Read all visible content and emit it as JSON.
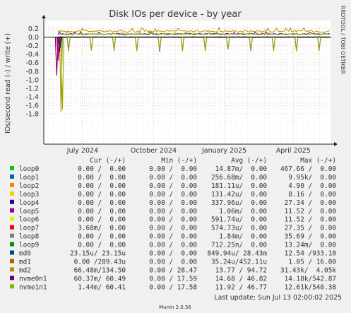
{
  "title": "Disk IOs per device - by year",
  "side_label": "RRDTOOL / TOBI OETIKER",
  "footer": "Munin 2.0.56",
  "last_update": "Last update: Sun Jul 13 02:00:02 2025",
  "colors": {
    "background": "#f0f0f0",
    "plot_bg": "#ffffff",
    "grid_major": "#e8a6a6",
    "grid_minor": "#d8d8d8",
    "axis": "#222222"
  },
  "chart_data": {
    "type": "line",
    "ylabel": "IOs/second read (-) / write (+)",
    "xlabel": "",
    "ylim": [
      -1.8,
      0.27
    ],
    "y_ticks": [
      0.2,
      0.0,
      -0.2,
      -0.4,
      -0.6,
      -0.8,
      -1.0,
      -1.2,
      -1.4,
      -1.6,
      -1.8
    ],
    "y_tick_labels": [
      "0.2",
      "0.0",
      "-0.2",
      "-0.4",
      "-0.6",
      "-0.8",
      "-1.0",
      "-1.2",
      "-1.4",
      "-1.6",
      "-1.8"
    ],
    "x_tick_labels": [
      "July 2024",
      "October 2024",
      "January 2025",
      "April 2025"
    ],
    "x_tick_positions": [
      0.135,
      0.382,
      0.628,
      0.868
    ],
    "grid": true,
    "legend_headers": [
      "Cur (-/+)",
      "Min (-/+)",
      "Avg (-/+)",
      "Max (-/+)"
    ],
    "series": [
      {
        "name": "loop0",
        "color": "#00cc00",
        "cur": "0.00 /  0.00",
        "min": "0.00 /  0.00",
        "avg": "14.87m/  0.00",
        "max": "467.66 /  0.00"
      },
      {
        "name": "loop1",
        "color": "#0066b3",
        "cur": "0.00 /  0.00",
        "min": "0.00 /  0.00",
        "avg": "256.68m/  0.00",
        "max": "9.95k/  0.00"
      },
      {
        "name": "loop2",
        "color": "#ff8000",
        "cur": "0.00 /  0.00",
        "min": "0.00 /  0.00",
        "avg": "181.11u/  0.00",
        "max": "4.90 /  0.00"
      },
      {
        "name": "loop3",
        "color": "#ffcc00",
        "cur": "0.00 /  0.00",
        "min": "0.00 /  0.00",
        "avg": "131.42u/  0.00",
        "max": "8.16 /  0.00"
      },
      {
        "name": "loop4",
        "color": "#330099",
        "cur": "0.00 /  0.00",
        "min": "0.00 /  0.00",
        "avg": "337.96u/  0.00",
        "max": "27.34 /  0.00"
      },
      {
        "name": "loop5",
        "color": "#990099",
        "cur": "0.00 /  0.00",
        "min": "0.00 /  0.00",
        "avg": "1.06m/  0.00",
        "max": "11.52 /  0.00"
      },
      {
        "name": "loop6",
        "color": "#ccff00",
        "cur": "0.00 /  0.00",
        "min": "0.00 /  0.00",
        "avg": "591.74u/  0.00",
        "max": "11.52 /  0.00"
      },
      {
        "name": "loop7",
        "color": "#ff0000",
        "cur": "3.68m/  0.00",
        "min": "0.00 /  0.00",
        "avg": "574.73u/  0.00",
        "max": "27.35 /  0.00"
      },
      {
        "name": "loop8",
        "color": "#808080",
        "cur": "0.00 /  0.00",
        "min": "0.00 /  0.00",
        "avg": "1.84m/  0.00",
        "max": "35.69 /  0.00"
      },
      {
        "name": "loop9",
        "color": "#008f00",
        "cur": "0.00 /  0.00",
        "min": "0.00 /  0.00",
        "avg": "712.25n/  0.00",
        "max": "13.24m/  0.00"
      },
      {
        "name": "md0",
        "color": "#00487d",
        "cur": "23.15u/ 23.15u",
        "min": "0.00 /  0.00",
        "avg": "849.94u/ 28.43m",
        "max": "12.54 /933.10"
      },
      {
        "name": "md1",
        "color": "#b35a00",
        "cur": "0.00 /289.43u",
        "min": "0.00 /  0.00",
        "avg": "35.24u/452.11u",
        "max": "1.05 / 16.00"
      },
      {
        "name": "md2",
        "color": "#b38f00",
        "cur": "66.48m/134.50",
        "min": "0.00 / 28.47",
        "avg": "13.77 / 94.72",
        "max": "31.43k/  4.05k"
      },
      {
        "name": "nvme0n1",
        "color": "#6b006b",
        "cur": "60.37m/ 60.49",
        "min": "0.00 / 17.59",
        "avg": "14.68 / 46.82",
        "max": "14.18k/542.87"
      },
      {
        "name": "nvme1n1",
        "color": "#8fb300",
        "cur": "1.44m/ 60.41",
        "min": "0.00 / 17.58",
        "avg": "11.92 / 46.77",
        "max": "12.61k/540.38"
      }
    ]
  }
}
